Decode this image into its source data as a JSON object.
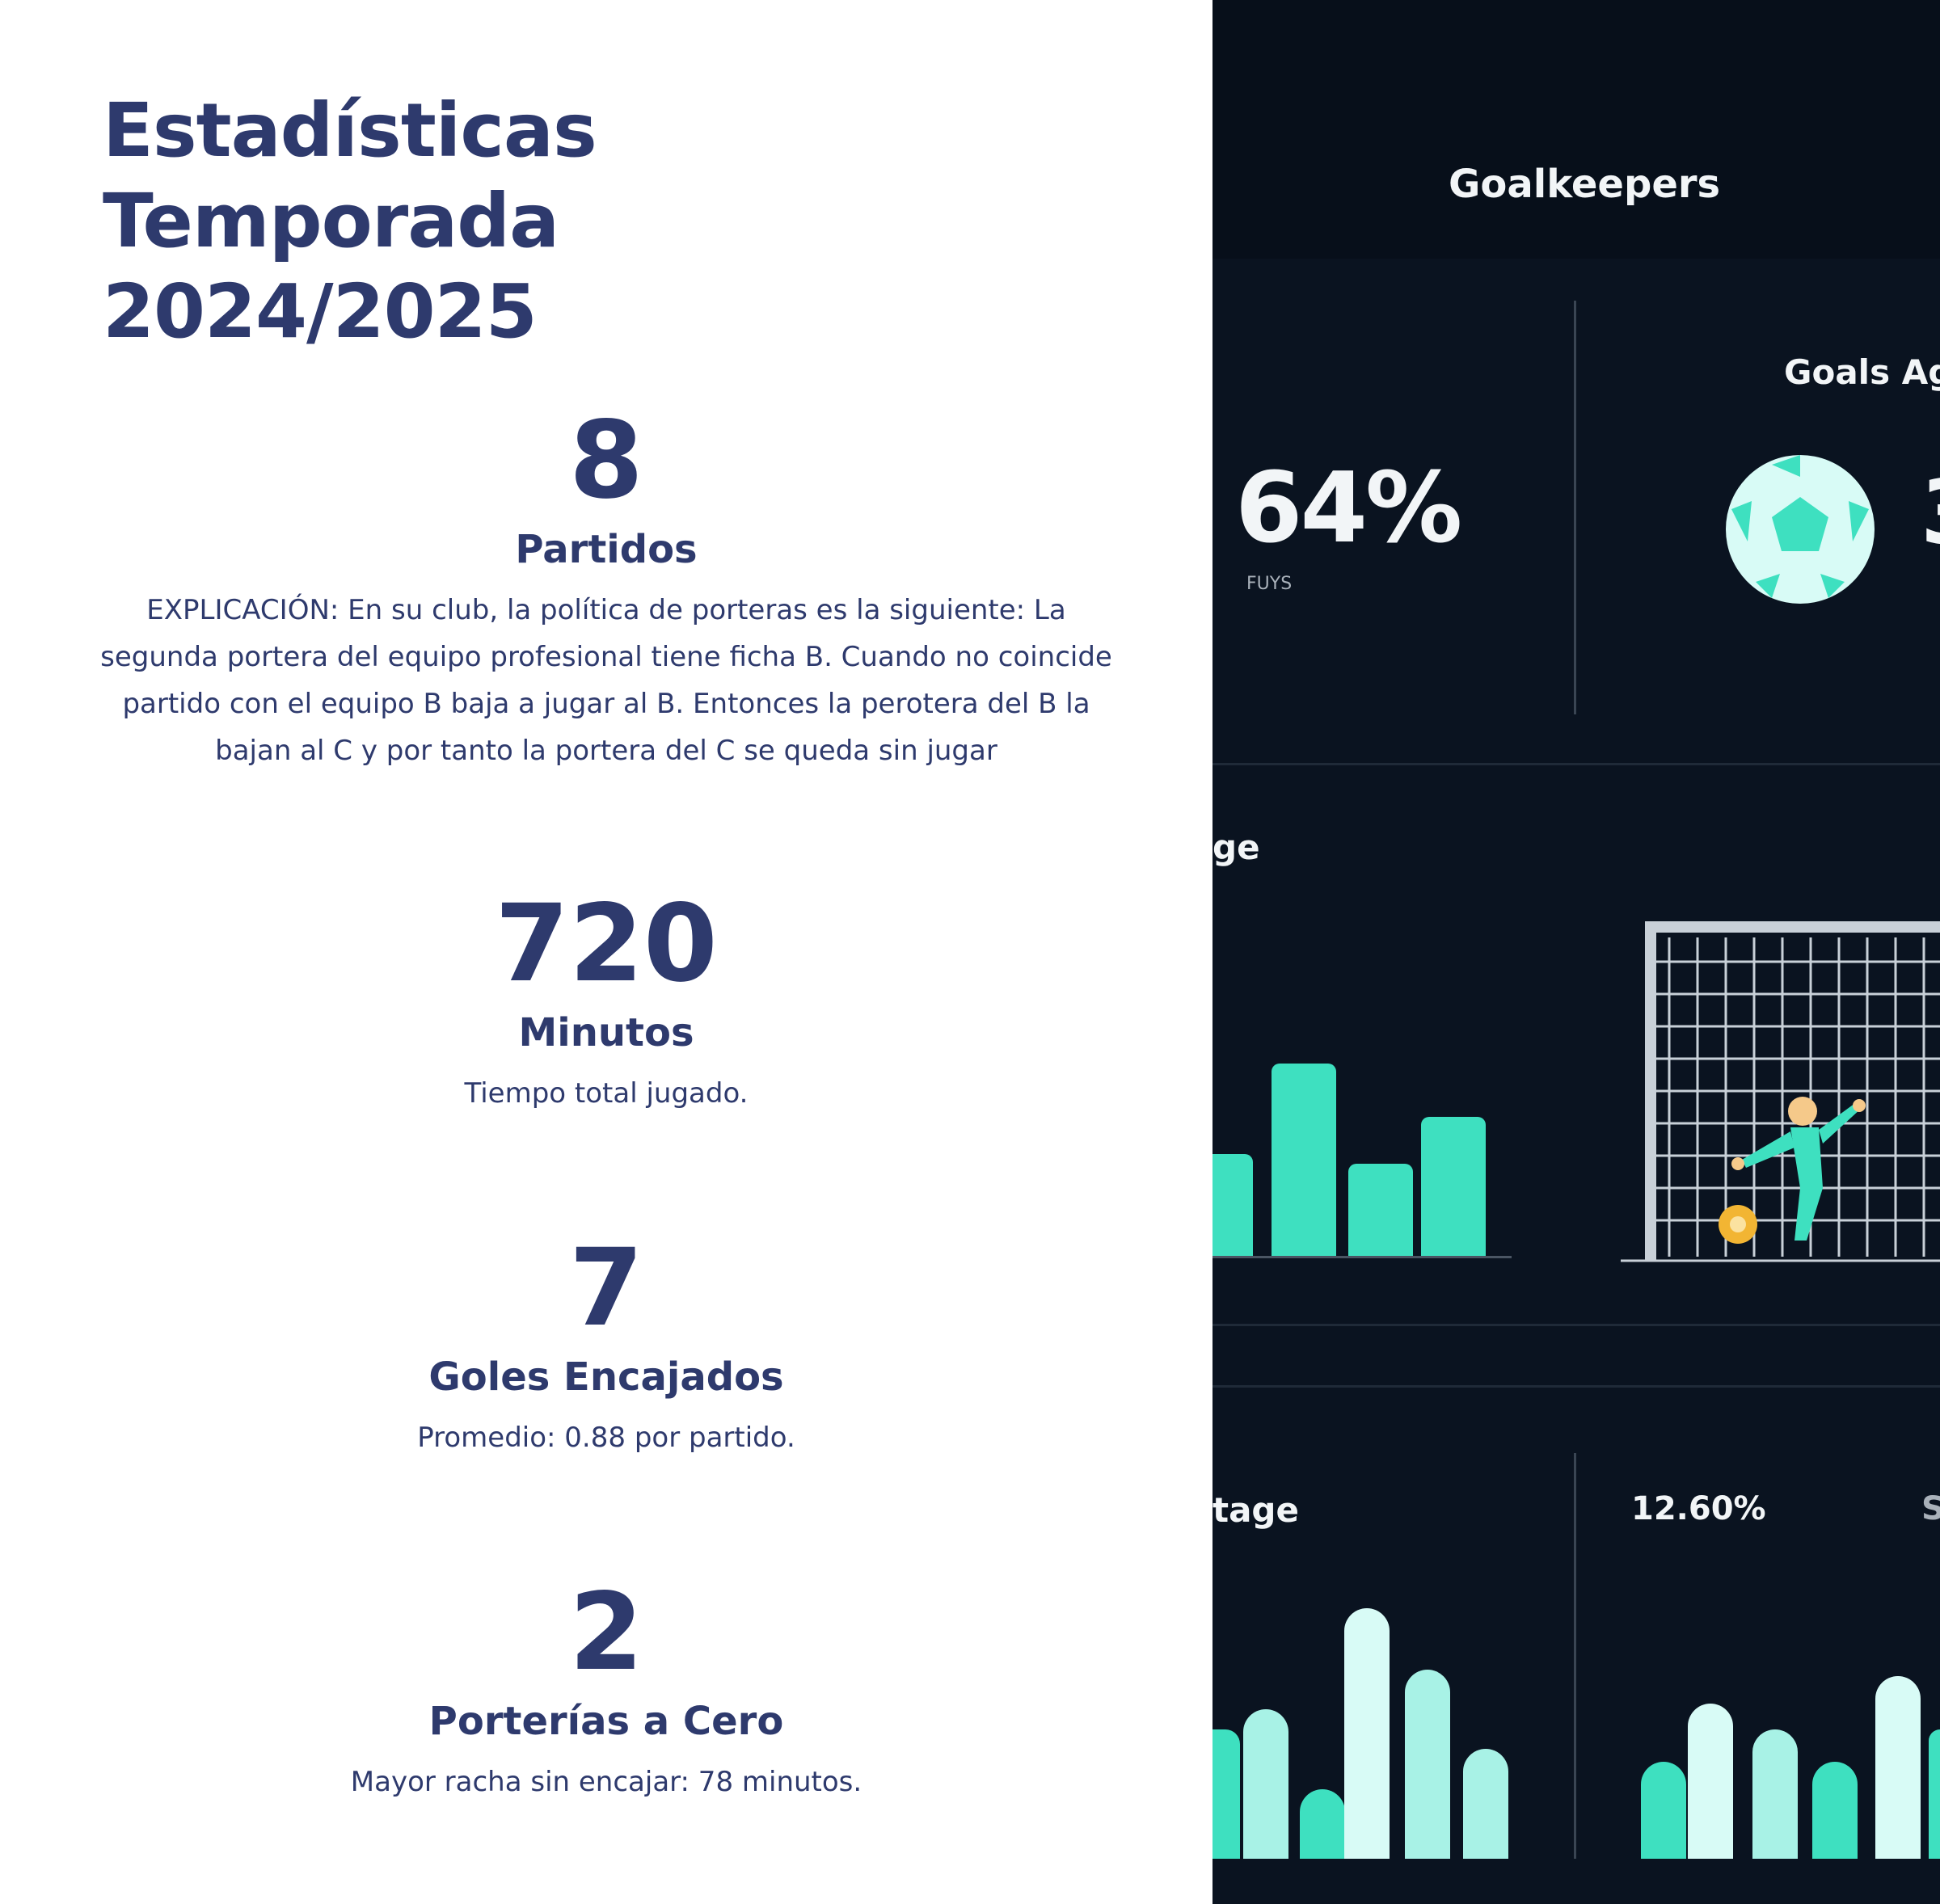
{
  "title": {
    "line1": "Estadísticas",
    "line2": "Temporada",
    "line3": "2024/2025"
  },
  "stats": [
    {
      "value": "8",
      "label": "Partidos",
      "description": "EXPLICACIÓN: En su club, la política de porteras es la siguiente: La segunda portera del equipo profesional tiene ficha B. Cuando no coincide partido con el equipo B baja a jugar al B. Entonces la perotera del B la bajan al C y por tanto la portera del C se queda sin jugar"
    },
    {
      "value": "720",
      "label": "Minutos",
      "description": "Tiempo total jugado."
    },
    {
      "value": "7",
      "label": "Goles Encajados",
      "description": "Promedio: 0.88 por partido."
    },
    {
      "value": "2",
      "label": "Porterías a Cero",
      "description": "Mayor racha sin encajar: 78 minutos."
    }
  ],
  "image_panel": {
    "heading": "Goalkeepers",
    "goals_against_label": "Goals Ag",
    "big_percent": "64%",
    "small_caption": "FUYS",
    "partial_label_mid": "ge",
    "partial_label_bottom": "tage",
    "bottom_percent": "12.60%",
    "partial_char_right": "S",
    "partial_char_top": "3",
    "accent_color": "#3ee0c0",
    "light_bar_color": "#d8fbf6",
    "background_color": "#0a1320"
  }
}
